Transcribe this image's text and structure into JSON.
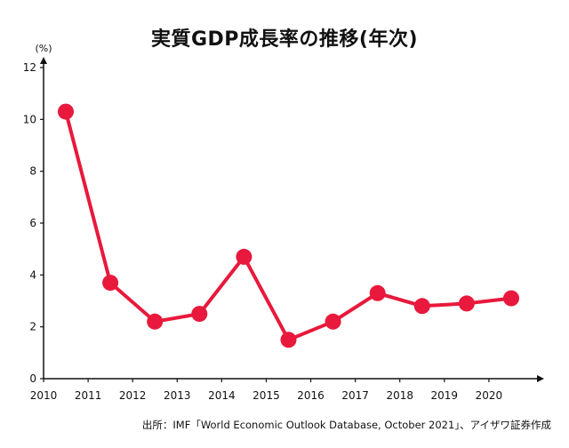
{
  "chart_data": {
    "type": "line",
    "title": "実質GDP成長率の推移(年次)",
    "ylabel": "(%)",
    "xlabel": "",
    "source": "出所：IMF「World Economic Outlook Database, October 2021」、アイザワ証券作成",
    "ylim": [
      0,
      12
    ],
    "yticks": [
      0,
      2,
      4,
      6,
      8,
      10,
      12
    ],
    "xlim": [
      2010,
      2021
    ],
    "xticks": [
      2010,
      2011,
      2012,
      2013,
      2014,
      2015,
      2016,
      2017,
      2018,
      2019,
      2020
    ],
    "grid": false,
    "color": "#e8193c",
    "x": [
      2010,
      2011,
      2012,
      2013,
      2014,
      2015,
      2016,
      2017,
      2018,
      2019,
      2020
    ],
    "values": [
      10.3,
      3.7,
      2.2,
      2.5,
      4.7,
      1.5,
      2.2,
      3.3,
      2.8,
      2.9,
      3.1
    ]
  }
}
